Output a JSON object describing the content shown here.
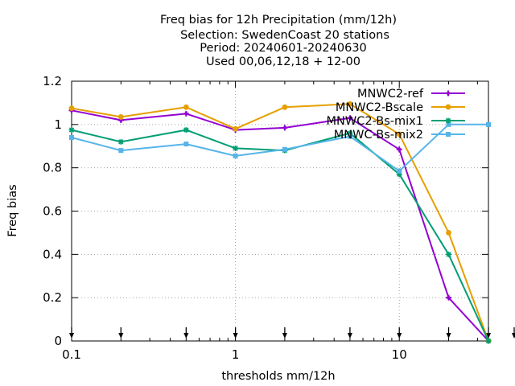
{
  "title_lines": [
    "Freq bias  for 12h Precipitation (mm/12h)",
    "Selection: SwedenCoast     20 stations",
    "Period: 20240601-20240630",
    "Used 00,06,12,18 + 12-00"
  ],
  "chart_data": {
    "type": "line",
    "xlabel": "thresholds mm/12h",
    "ylabel": "Freq bias",
    "x_scale": "log",
    "xlim": [
      0.1,
      35
    ],
    "ylim": [
      0,
      1.2
    ],
    "x_ticks": [
      {
        "value": 0.1,
        "label": "0.1"
      },
      {
        "value": 1,
        "label": "1"
      },
      {
        "value": 10,
        "label": "10"
      }
    ],
    "y_ticks": [
      {
        "value": 0,
        "label": "0"
      },
      {
        "value": 0.2,
        "label": "0.2"
      },
      {
        "value": 0.4,
        "label": "0.4"
      },
      {
        "value": 0.6,
        "label": "0.6"
      },
      {
        "value": 0.8,
        "label": "0.8"
      },
      {
        "value": 1,
        "label": "1"
      },
      {
        "value": 1.2,
        "label": "1.2"
      }
    ],
    "grid": true,
    "legend_position": "top-right",
    "x": [
      0.1,
      0.2,
      0.5,
      1,
      2,
      5,
      10,
      20,
      35
    ],
    "series": [
      {
        "name": "MNWC2-ref",
        "color": "#9400d3",
        "marker": "plus",
        "values": [
          1.065,
          1.02,
          1.05,
          0.975,
          0.985,
          1.03,
          0.885,
          0.2,
          0.0
        ]
      },
      {
        "name": "MNWC2-Bscale",
        "color": "#e69f00",
        "marker": "circle",
        "values": [
          1.075,
          1.035,
          1.08,
          0.98,
          1.08,
          1.095,
          0.955,
          0.5,
          0.0
        ]
      },
      {
        "name": "MNWC2-Bs-mix1",
        "color": "#009e73",
        "marker": "star",
        "values": [
          0.975,
          0.92,
          0.975,
          0.89,
          0.88,
          0.96,
          0.77,
          0.4,
          0.0
        ]
      },
      {
        "name": "MNWC-Bs-mix2",
        "color": "#56b4e9",
        "marker": "square",
        "values": [
          0.94,
          0.88,
          0.91,
          0.855,
          0.885,
          0.945,
          0.785,
          1.0,
          1.0
        ]
      }
    ]
  }
}
